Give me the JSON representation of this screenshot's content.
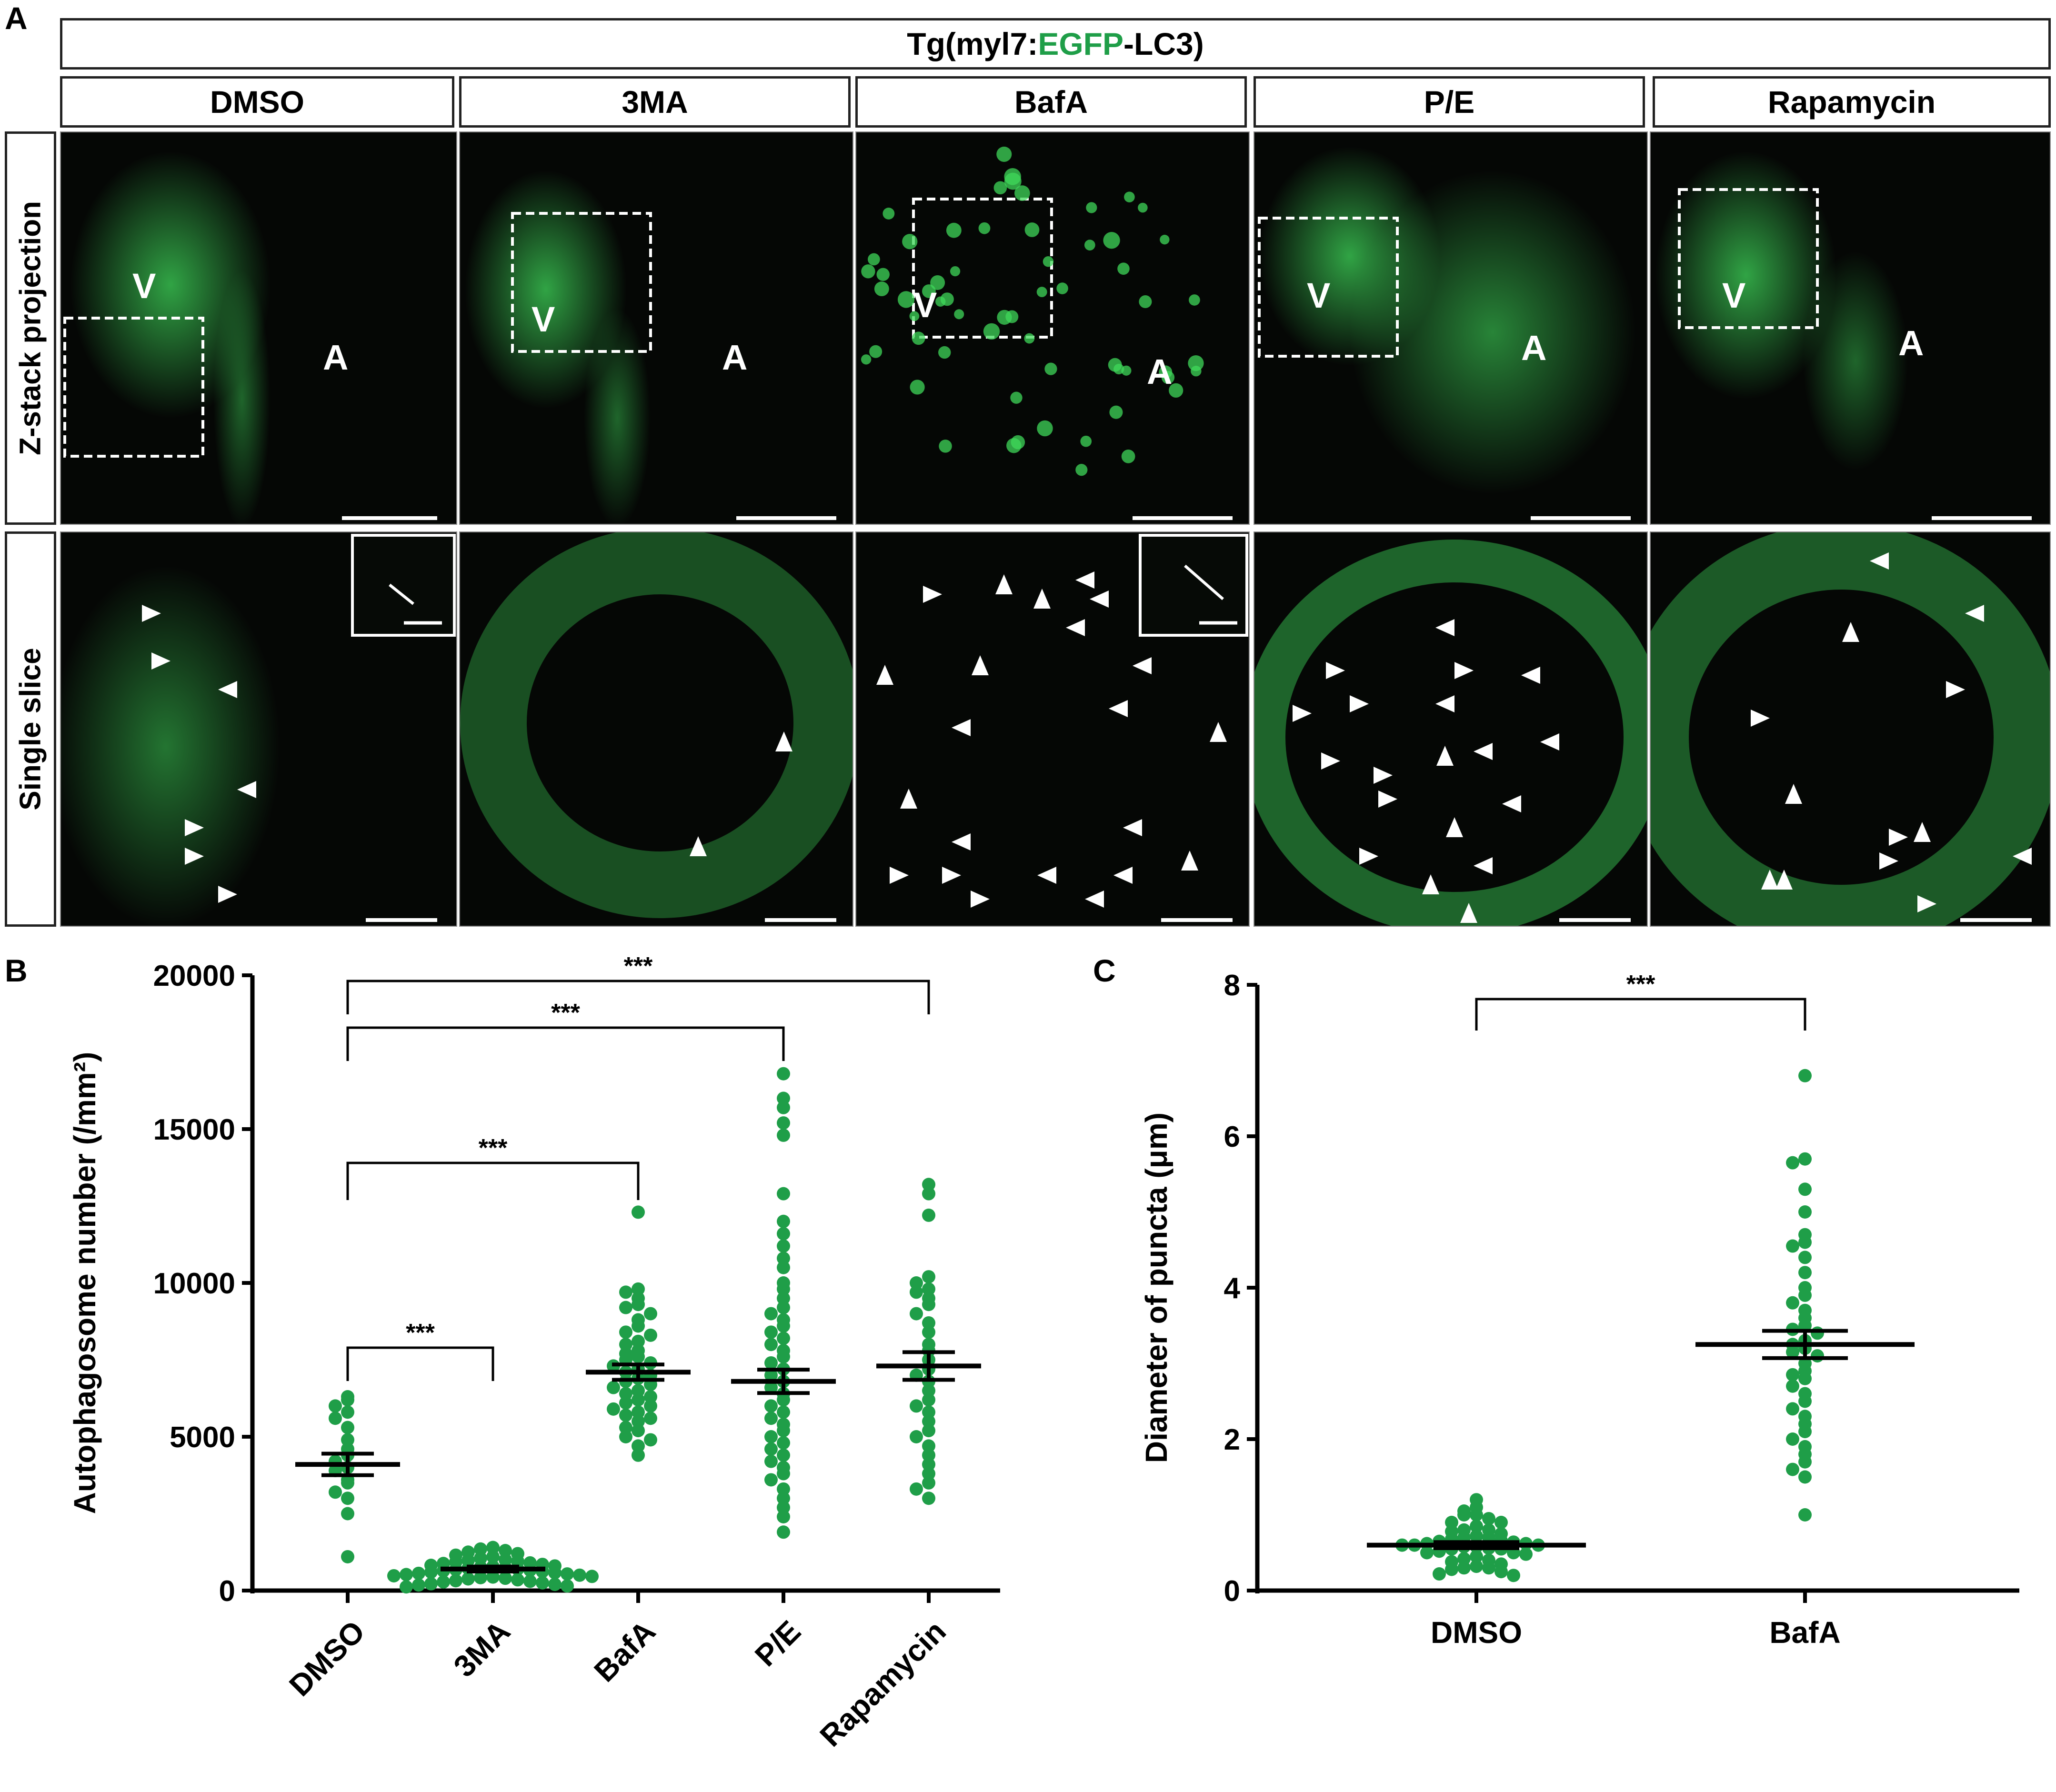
{
  "panel_a": {
    "letter": "A",
    "transgene_prefix": "Tg(myl7:",
    "transgene_reporter": "EGFP",
    "transgene_suffix": "-LC3)",
    "reporter_color": "#1f9e48",
    "conditions": [
      "DMSO",
      "3MA",
      "BafA",
      "P/E",
      "Rapamycin"
    ],
    "row_labels": [
      "Z-stack projection",
      "Single slice"
    ],
    "chamber_labels": {
      "ventricle": "V",
      "atrium": "A"
    },
    "fluorescence_color": "#3fd85a"
  },
  "chart_data": [
    {
      "panel": "B",
      "type": "scatter",
      "ylabel": "Autophagosome number (/mm²)",
      "ylim": [
        0,
        20000
      ],
      "yticks": [
        0,
        5000,
        10000,
        15000,
        20000
      ],
      "categories": [
        "DMSO",
        "3MA",
        "BafA",
        "P/E",
        "Rapamycin"
      ],
      "point_color": "#1f9e48",
      "groups": [
        {
          "name": "DMSO",
          "mean": 4100,
          "sem": 350,
          "values": [
            6300,
            6200,
            6000,
            5800,
            5600,
            5300,
            4900,
            4600,
            4400,
            4200,
            4000,
            3900,
            3600,
            3500,
            3200,
            3000,
            2500,
            1100
          ]
        },
        {
          "name": "3MA",
          "mean": 700,
          "sem": 80,
          "values": [
            1400,
            1350,
            1300,
            1250,
            1200,
            1150,
            1100,
            1050,
            1000,
            980,
            950,
            930,
            900,
            880,
            850,
            820,
            800,
            780,
            760,
            740,
            720,
            700,
            680,
            660,
            640,
            620,
            600,
            580,
            560,
            540,
            520,
            500,
            480,
            460,
            440,
            420,
            400,
            380,
            350,
            320,
            300,
            280,
            250,
            220,
            200,
            180,
            150,
            120
          ]
        },
        {
          "name": "BafA",
          "mean": 7100,
          "sem": 250,
          "values": [
            12300,
            9800,
            9700,
            9500,
            9300,
            9200,
            9000,
            8800,
            8600,
            8400,
            8300,
            8100,
            8000,
            7800,
            7700,
            7600,
            7500,
            7400,
            7300,
            7200,
            7100,
            7000,
            6900,
            6800,
            6700,
            6600,
            6500,
            6400,
            6300,
            6200,
            6100,
            6000,
            5900,
            5800,
            5700,
            5600,
            5500,
            5300,
            5200,
            5000,
            4900,
            4700,
            4400
          ]
        },
        {
          "name": "P/E",
          "mean": 6800,
          "sem": 380,
          "values": [
            16800,
            16000,
            15700,
            15200,
            14800,
            12900,
            12000,
            11600,
            11200,
            10800,
            10500,
            10000,
            9800,
            9500,
            9200,
            9000,
            8800,
            8600,
            8400,
            8200,
            8000,
            7800,
            7600,
            7400,
            7200,
            7000,
            6800,
            6600,
            6400,
            6200,
            6000,
            5800,
            5600,
            5400,
            5200,
            5000,
            4800,
            4600,
            4400,
            4200,
            4000,
            3800,
            3600,
            3300,
            3000,
            2700,
            2400,
            1900
          ]
        },
        {
          "name": "Rapamycin",
          "mean": 7300,
          "sem": 450,
          "values": [
            13200,
            12900,
            12200,
            10200,
            10000,
            9800,
            9700,
            9500,
            9300,
            9000,
            8700,
            8400,
            8000,
            7800,
            7500,
            7200,
            7000,
            6800,
            6500,
            6200,
            6000,
            5800,
            5500,
            5200,
            5000,
            4700,
            4400,
            4100,
            3800,
            3500,
            3300,
            3000
          ]
        }
      ],
      "brackets": [
        {
          "from": "DMSO",
          "to": "3MA",
          "label": "***"
        },
        {
          "from": "DMSO",
          "to": "BafA",
          "label": "***"
        },
        {
          "from": "DMSO",
          "to": "P/E",
          "label": "***"
        },
        {
          "from": "DMSO",
          "to": "Rapamycin",
          "label": "***"
        }
      ]
    },
    {
      "panel": "C",
      "type": "scatter",
      "ylabel": "Diameter of puncta (μm)",
      "ylim": [
        0,
        8
      ],
      "yticks": [
        0,
        2,
        4,
        6,
        8
      ],
      "categories": [
        "DMSO",
        "BafA"
      ],
      "point_color": "#1f9e48",
      "groups": [
        {
          "name": "DMSO",
          "mean": 0.6,
          "sem": 0.04,
          "values": [
            1.2,
            1.1,
            1.05,
            1.0,
            1.0,
            0.95,
            0.9,
            0.9,
            0.85,
            0.8,
            0.8,
            0.78,
            0.75,
            0.72,
            0.7,
            0.7,
            0.68,
            0.66,
            0.65,
            0.64,
            0.62,
            0.62,
            0.6,
            0.6,
            0.6,
            0.58,
            0.58,
            0.56,
            0.55,
            0.55,
            0.52,
            0.5,
            0.5,
            0.48,
            0.45,
            0.42,
            0.4,
            0.38,
            0.35,
            0.32,
            0.3,
            0.3,
            0.28,
            0.25,
            0.22,
            0.2
          ]
        },
        {
          "name": "BafA",
          "mean": 3.25,
          "sem": 0.18,
          "values": [
            6.8,
            5.7,
            5.65,
            5.3,
            5.0,
            4.7,
            4.6,
            4.55,
            4.4,
            4.2,
            4.0,
            3.9,
            3.8,
            3.7,
            3.6,
            3.5,
            3.45,
            3.4,
            3.3,
            3.25,
            3.2,
            3.15,
            3.1,
            3.0,
            2.9,
            2.85,
            2.8,
            2.7,
            2.6,
            2.5,
            2.4,
            2.3,
            2.2,
            2.1,
            2.0,
            1.9,
            1.8,
            1.7,
            1.6,
            1.5,
            1.0
          ]
        }
      ],
      "brackets": [
        {
          "from": "DMSO",
          "to": "BafA",
          "label": "***"
        }
      ]
    }
  ]
}
